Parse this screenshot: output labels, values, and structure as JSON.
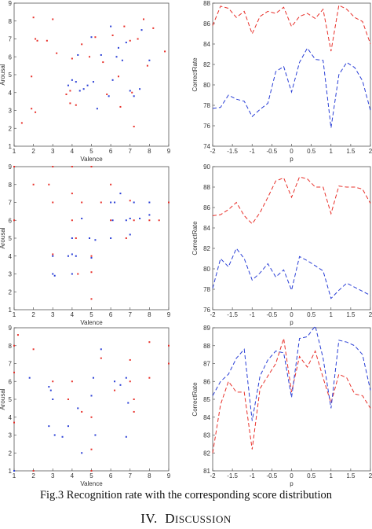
{
  "caption": "Fig.3 Recognition rate with the corresponding score distribution",
  "section": {
    "number": "IV.",
    "title_first": "D",
    "title_rest": "ISCUSSION"
  },
  "colors": {
    "red": "#e8302a",
    "blue": "#2a3fd6",
    "axis": "#555555"
  },
  "chart_data": [
    {
      "type": "scatter",
      "xlabel": "Valence",
      "ylabel": "Arousal",
      "xlim": [
        1,
        9
      ],
      "ylim": [
        1,
        9
      ],
      "xticks": [
        1,
        2,
        3,
        4,
        5,
        6,
        7,
        8,
        9
      ],
      "yticks": [
        1,
        2,
        3,
        4,
        5,
        6,
        7,
        8,
        9
      ],
      "series": [
        {
          "color": "red",
          "points": [
            [
              1.4,
              2.3
            ],
            [
              2.0,
              8.2
            ],
            [
              2.1,
              7.0
            ],
            [
              2.2,
              6.9
            ],
            [
              1.9,
              4.9
            ],
            [
              1.9,
              3.1
            ],
            [
              2.1,
              2.9
            ],
            [
              2.7,
              6.9
            ],
            [
              3.0,
              8.1
            ],
            [
              3.2,
              6.2
            ],
            [
              3.7,
              3.9
            ],
            [
              3.9,
              4.1
            ],
            [
              3.9,
              3.4
            ],
            [
              4.0,
              5.9
            ],
            [
              4.2,
              3.3
            ],
            [
              4.5,
              6.7
            ],
            [
              4.9,
              6.0
            ],
            [
              5.2,
              7.1
            ],
            [
              5.6,
              5.7
            ],
            [
              5.8,
              3.9
            ],
            [
              6.1,
              7.2
            ],
            [
              6.4,
              4.9
            ],
            [
              6.5,
              3.2
            ],
            [
              6.7,
              7.7
            ],
            [
              7.0,
              6.9
            ],
            [
              7.1,
              4.0
            ],
            [
              7.2,
              2.1
            ],
            [
              7.4,
              7.0
            ],
            [
              7.7,
              8.1
            ],
            [
              7.9,
              5.5
            ],
            [
              8.2,
              7.6
            ],
            [
              8.8,
              6.3
            ]
          ]
        },
        {
          "color": "blue",
          "points": [
            [
              3.8,
              4.4
            ],
            [
              4.0,
              4.7
            ],
            [
              4.2,
              4.6
            ],
            [
              4.3,
              6.1
            ],
            [
              4.4,
              4.1
            ],
            [
              4.6,
              4.2
            ],
            [
              4.8,
              4.4
            ],
            [
              5.0,
              7.1
            ],
            [
              5.1,
              4.6
            ],
            [
              5.3,
              3.1
            ],
            [
              5.5,
              6.1
            ],
            [
              5.9,
              3.8
            ],
            [
              6.0,
              7.7
            ],
            [
              6.1,
              4.7
            ],
            [
              6.3,
              6.0
            ],
            [
              6.4,
              6.5
            ],
            [
              6.6,
              5.8
            ],
            [
              6.8,
              6.8
            ],
            [
              7.0,
              4.1
            ],
            [
              7.2,
              3.8
            ],
            [
              7.5,
              4.2
            ],
            [
              7.6,
              7.5
            ],
            [
              8.0,
              5.8
            ]
          ]
        }
      ]
    },
    {
      "type": "line",
      "xlabel": "p",
      "ylabel": "CorrectRate",
      "xlim": [
        -2,
        2
      ],
      "ylim": [
        74,
        88
      ],
      "xticks": [
        -2,
        -1.5,
        -1,
        -0.5,
        0,
        0.5,
        1,
        1.5,
        2
      ],
      "yticks": [
        74,
        76,
        78,
        80,
        82,
        84,
        86,
        88
      ],
      "x": [
        -2,
        -1.8,
        -1.6,
        -1.4,
        -1.2,
        -1,
        -0.8,
        -0.6,
        -0.4,
        -0.2,
        0,
        0.2,
        0.4,
        0.6,
        0.8,
        1,
        1.2,
        1.4,
        1.6,
        1.8,
        2
      ],
      "series": [
        {
          "color": "red",
          "values": [
            85.8,
            87.7,
            87.5,
            86.6,
            87.2,
            85.0,
            86.7,
            87.2,
            87.0,
            87.6,
            85.7,
            86.7,
            87.0,
            86.5,
            87.4,
            83.3,
            87.8,
            87.4,
            86.6,
            86.2,
            84.0
          ]
        },
        {
          "color": "blue",
          "values": [
            77.7,
            77.8,
            79.0,
            78.6,
            78.4,
            76.9,
            77.6,
            78.2,
            81.3,
            81.8,
            79.3,
            82.2,
            83.6,
            82.5,
            82.4,
            75.8,
            81.0,
            82.2,
            81.7,
            80.4,
            77.5
          ]
        }
      ]
    },
    {
      "type": "scatter",
      "xlabel": "Valence",
      "ylabel": "Arousal",
      "xlim": [
        1,
        9
      ],
      "ylim": [
        1,
        9
      ],
      "xticks": [
        1,
        2,
        3,
        4,
        5,
        6,
        7,
        8,
        9
      ],
      "yticks": [
        1,
        2,
        3,
        4,
        5,
        6,
        7,
        8,
        9
      ],
      "series": [
        {
          "color": "red",
          "points": [
            [
              1.0,
              9.0
            ],
            [
              1.0,
              6.0
            ],
            [
              2.0,
              8.0
            ],
            [
              2.8,
              8.0
            ],
            [
              3.0,
              9.0
            ],
            [
              3.0,
              7.0
            ],
            [
              3.0,
              4.1
            ],
            [
              4.0,
              9.0
            ],
            [
              4.0,
              7.5
            ],
            [
              4.0,
              6.0
            ],
            [
              4.2,
              5.0
            ],
            [
              4.3,
              3.0
            ],
            [
              4.5,
              7.0
            ],
            [
              5.0,
              9.0
            ],
            [
              5.0,
              4.0
            ],
            [
              5.0,
              3.1
            ],
            [
              5.0,
              1.6
            ],
            [
              5.5,
              7.0
            ],
            [
              6.0,
              8.0
            ],
            [
              6.0,
              6.0
            ],
            [
              6.8,
              5.0
            ],
            [
              7.0,
              7.1
            ],
            [
              7.2,
              6.0
            ],
            [
              8.0,
              6.0
            ],
            [
              8.5,
              6.0
            ],
            [
              9.0,
              7.0
            ]
          ]
        },
        {
          "color": "blue",
          "points": [
            [
              3.0,
              4.0
            ],
            [
              3.0,
              3.0
            ],
            [
              3.1,
              2.9
            ],
            [
              3.8,
              4.0
            ],
            [
              4.0,
              4.1
            ],
            [
              4.0,
              5.0
            ],
            [
              4.0,
              3.0
            ],
            [
              4.2,
              4.0
            ],
            [
              4.5,
              6.1
            ],
            [
              4.9,
              5.0
            ],
            [
              5.0,
              3.9
            ],
            [
              5.2,
              4.9
            ],
            [
              6.0,
              7.0
            ],
            [
              6.0,
              5.0
            ],
            [
              6.1,
              6.0
            ],
            [
              6.2,
              7.0
            ],
            [
              6.5,
              7.5
            ],
            [
              6.8,
              6.0
            ],
            [
              7.0,
              6.1
            ],
            [
              7.0,
              5.2
            ],
            [
              7.2,
              7.0
            ],
            [
              7.5,
              6.1
            ],
            [
              8.0,
              7.0
            ],
            [
              8.0,
              6.3
            ]
          ]
        }
      ]
    },
    {
      "type": "line",
      "xlabel": "p",
      "ylabel": "CorrectRate",
      "xlim": [
        -2,
        2
      ],
      "ylim": [
        76,
        90
      ],
      "xticks": [
        -2,
        -1.5,
        -1,
        -0.5,
        0,
        0.5,
        1,
        1.5,
        2
      ],
      "yticks": [
        76,
        78,
        80,
        82,
        84,
        86,
        88,
        90
      ],
      "x": [
        -2,
        -1.8,
        -1.6,
        -1.4,
        -1.2,
        -1,
        -0.8,
        -0.6,
        -0.4,
        -0.2,
        0,
        0.2,
        0.4,
        0.6,
        0.8,
        1,
        1.2,
        1.4,
        1.6,
        1.8,
        2
      ],
      "series": [
        {
          "color": "red",
          "values": [
            85.2,
            85.3,
            85.8,
            86.5,
            85.2,
            84.4,
            85.5,
            87.0,
            88.6,
            88.9,
            87.0,
            89.0,
            88.8,
            88.0,
            88.0,
            85.4,
            88.1,
            88.0,
            88.0,
            87.8,
            86.4
          ]
        },
        {
          "color": "blue",
          "values": [
            78.1,
            81.0,
            80.2,
            82.0,
            81.0,
            78.9,
            79.6,
            80.5,
            79.2,
            79.9,
            77.9,
            81.2,
            80.8,
            80.3,
            79.8,
            77.1,
            77.9,
            78.6,
            78.2,
            77.8,
            77.4
          ]
        }
      ]
    },
    {
      "type": "scatter",
      "xlabel": "Valence",
      "ylabel": "Arousal",
      "xlim": [
        1,
        9
      ],
      "ylim": [
        1,
        9
      ],
      "xticks": [
        1,
        2,
        3,
        4,
        5,
        6,
        7,
        8,
        9
      ],
      "yticks": [
        1,
        2,
        3,
        4,
        5,
        6,
        7,
        8,
        9
      ],
      "series": [
        {
          "color": "red",
          "points": [
            [
              1.0,
              8.0
            ],
            [
              1.0,
              6.5
            ],
            [
              1.0,
              3.7
            ],
            [
              1.2,
              8.6
            ],
            [
              2.0,
              7.8
            ],
            [
              2.0,
              1.0
            ],
            [
              3.0,
              6.0
            ],
            [
              3.8,
              5.0
            ],
            [
              4.0,
              6.0
            ],
            [
              4.5,
              4.3
            ],
            [
              5.0,
              4.0
            ],
            [
              5.0,
              2.2
            ],
            [
              5.0,
              1.0
            ],
            [
              5.5,
              7.3
            ],
            [
              6.2,
              5.5
            ],
            [
              7.0,
              7.2
            ],
            [
              7.0,
              6.0
            ],
            [
              7.2,
              5.0
            ],
            [
              7.2,
              4.3
            ],
            [
              8.0,
              8.2
            ],
            [
              8.0,
              6.2
            ],
            [
              9.0,
              8.0
            ],
            [
              9.0,
              7.0
            ]
          ]
        },
        {
          "color": "blue",
          "points": [
            [
              1.0,
              1.0
            ],
            [
              1.8,
              6.2
            ],
            [
              2.8,
              5.7
            ],
            [
              2.9,
              5.5
            ],
            [
              3.0,
              5.0
            ],
            [
              2.8,
              3.5
            ],
            [
              3.1,
              3.0
            ],
            [
              3.5,
              2.9
            ],
            [
              3.8,
              3.5
            ],
            [
              4.3,
              4.5
            ],
            [
              4.5,
              2.0
            ],
            [
              5.0,
              5.2
            ],
            [
              5.1,
              6.2
            ],
            [
              5.2,
              3.0
            ],
            [
              5.5,
              7.8
            ],
            [
              6.2,
              6.0
            ],
            [
              6.5,
              5.8
            ],
            [
              6.8,
              6.2
            ],
            [
              6.8,
              2.9
            ],
            [
              6.9,
              4.8
            ]
          ]
        }
      ]
    },
    {
      "type": "line",
      "xlabel": "p",
      "ylabel": "CorrectRate",
      "xlim": [
        -2,
        2
      ],
      "ylim": [
        81,
        89
      ],
      "xticks": [
        -2,
        -1.5,
        -1,
        -0.5,
        0,
        0.5,
        1,
        1.5,
        2
      ],
      "yticks": [
        81,
        82,
        83,
        84,
        85,
        86,
        87,
        88,
        89
      ],
      "x": [
        -2,
        -1.8,
        -1.6,
        -1.4,
        -1.2,
        -1,
        -0.8,
        -0.6,
        -0.4,
        -0.2,
        0,
        0.2,
        0.4,
        0.6,
        0.8,
        1,
        1.2,
        1.4,
        1.6,
        1.8,
        2
      ],
      "series": [
        {
          "color": "red",
          "values": [
            82.0,
            84.7,
            86.0,
            85.4,
            85.4,
            82.2,
            85.6,
            86.3,
            87.0,
            88.4,
            85.4,
            87.4,
            86.8,
            87.7,
            86.2,
            84.8,
            86.4,
            86.2,
            85.3,
            85.2,
            84.5
          ]
        },
        {
          "color": "blue",
          "values": [
            85.2,
            86.0,
            86.4,
            87.3,
            87.8,
            83.8,
            86.3,
            87.2,
            87.7,
            87.6,
            85.1,
            88.4,
            88.5,
            89.1,
            87.3,
            84.5,
            88.3,
            88.2,
            88.0,
            87.5,
            85.5
          ]
        }
      ]
    }
  ]
}
